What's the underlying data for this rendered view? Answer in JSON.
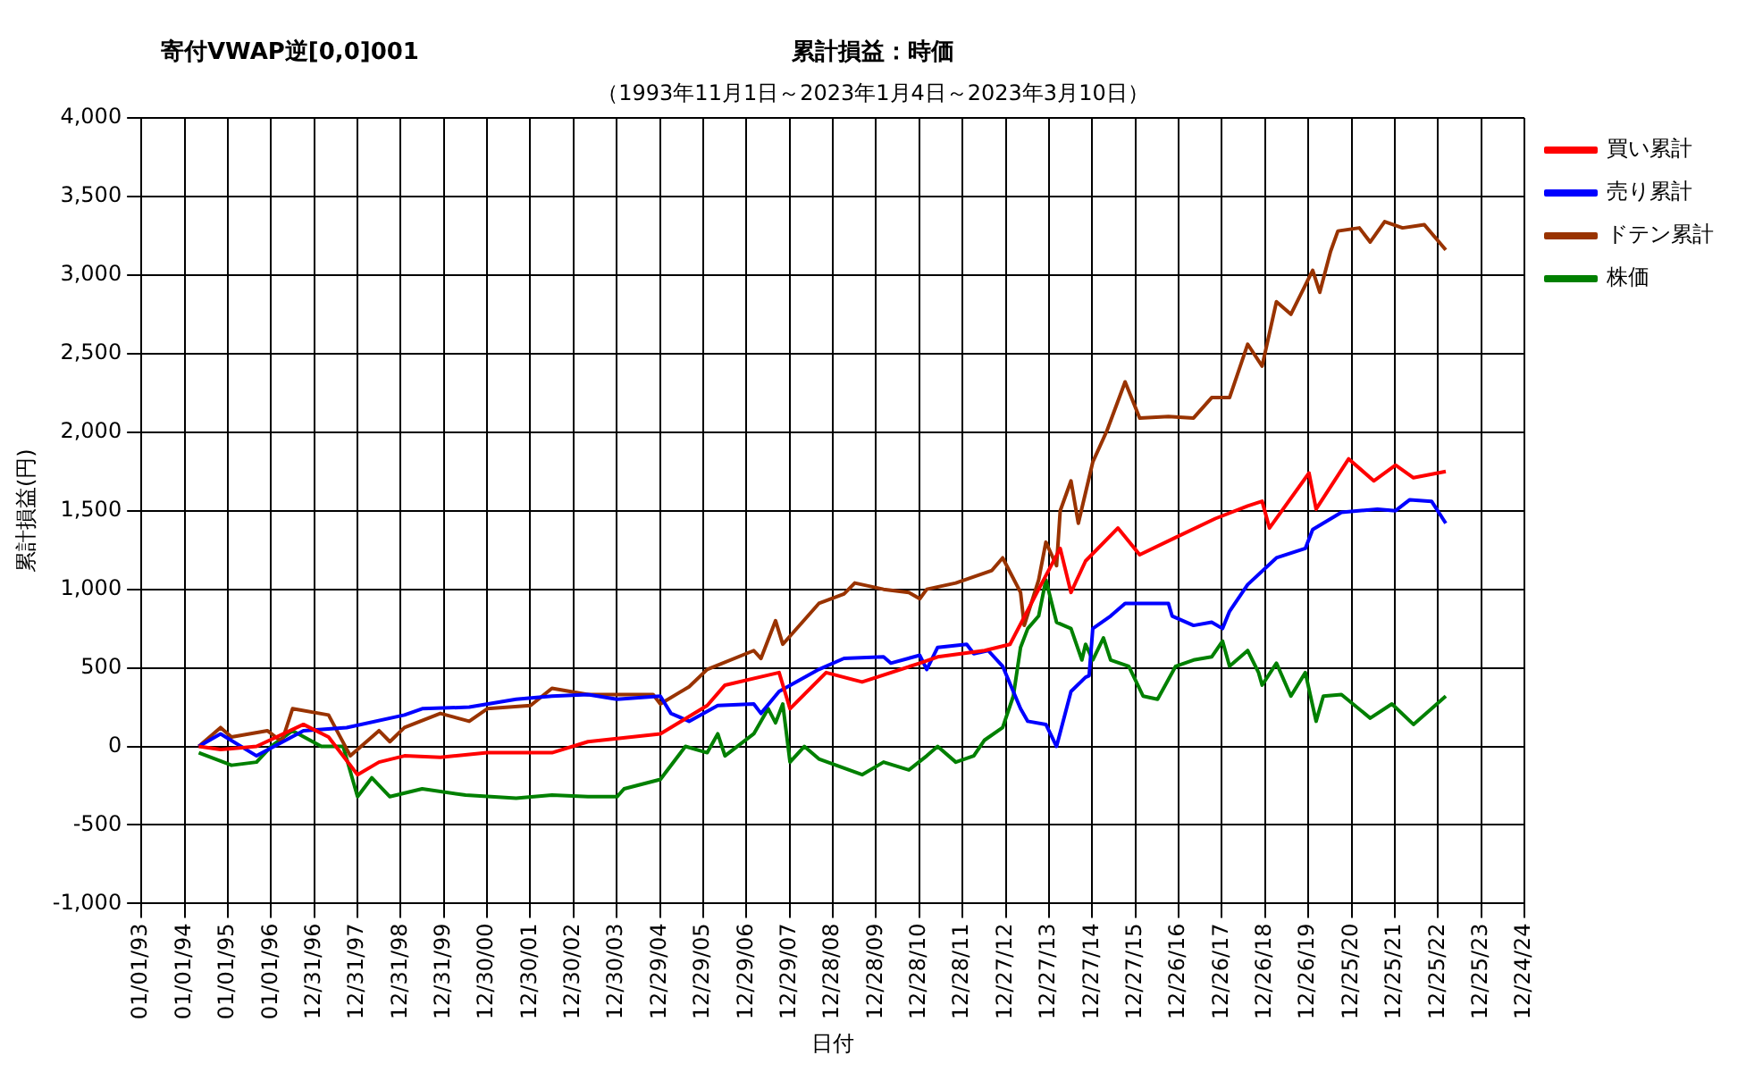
{
  "chart_data": {
    "type": "line",
    "title": "累計損益：時価",
    "subtitle": "（1993年11月1日～2023年1月4日～2023年3月10日）",
    "annotations": [
      "寄付VWAP逆[0,0]001"
    ],
    "xlabel": "日付",
    "ylabel": "累計損益(円)",
    "xlim": [
      "1993-01-01",
      "2024-12-24"
    ],
    "xticks": [
      {
        "value": "1993-01-01",
        "label": "01/01/93"
      },
      {
        "value": "1994-01-01",
        "label": "01/01/94"
      },
      {
        "value": "1995-01-01",
        "label": "01/01/95"
      },
      {
        "value": "1996-01-01",
        "label": "01/01/96"
      },
      {
        "value": "1996-12-31",
        "label": "12/31/96"
      },
      {
        "value": "1997-12-31",
        "label": "12/31/97"
      },
      {
        "value": "1998-12-31",
        "label": "12/31/98"
      },
      {
        "value": "1999-12-31",
        "label": "12/31/99"
      },
      {
        "value": "2000-12-30",
        "label": "12/30/00"
      },
      {
        "value": "2001-12-30",
        "label": "12/30/01"
      },
      {
        "value": "2002-12-30",
        "label": "12/30/02"
      },
      {
        "value": "2003-12-30",
        "label": "12/30/03"
      },
      {
        "value": "2004-12-29",
        "label": "12/29/04"
      },
      {
        "value": "2005-12-29",
        "label": "12/29/05"
      },
      {
        "value": "2006-12-29",
        "label": "12/29/06"
      },
      {
        "value": "2007-12-29",
        "label": "12/29/07"
      },
      {
        "value": "2008-12-28",
        "label": "12/28/08"
      },
      {
        "value": "2009-12-28",
        "label": "12/28/09"
      },
      {
        "value": "2010-12-28",
        "label": "12/28/10"
      },
      {
        "value": "2011-12-28",
        "label": "12/28/11"
      },
      {
        "value": "2012-12-27",
        "label": "12/27/12"
      },
      {
        "value": "2013-12-27",
        "label": "12/27/13"
      },
      {
        "value": "2014-12-27",
        "label": "12/27/14"
      },
      {
        "value": "2015-12-27",
        "label": "12/27/15"
      },
      {
        "value": "2016-12-26",
        "label": "12/26/16"
      },
      {
        "value": "2017-12-26",
        "label": "12/26/17"
      },
      {
        "value": "2018-12-26",
        "label": "12/26/18"
      },
      {
        "value": "2019-12-26",
        "label": "12/26/19"
      },
      {
        "value": "2020-12-25",
        "label": "12/25/20"
      },
      {
        "value": "2021-12-25",
        "label": "12/25/21"
      },
      {
        "value": "2022-12-25",
        "label": "12/25/22"
      },
      {
        "value": "2023-12-25",
        "label": "12/25/23"
      },
      {
        "value": "2024-12-24",
        "label": "12/24/24"
      }
    ],
    "ylim": [
      -1000,
      4000
    ],
    "yticks": [
      {
        "value": -1000,
        "label": "-1,000"
      },
      {
        "value": -500,
        "label": "-500"
      },
      0,
      500,
      {
        "value": 1000,
        "label": "1,000"
      },
      {
        "value": 1500,
        "label": "1,500"
      },
      {
        "value": 2000,
        "label": "2,000"
      },
      {
        "value": 2500,
        "label": "2,500"
      },
      {
        "value": 3000,
        "label": "3,000"
      },
      {
        "value": 3500,
        "label": "3,500"
      },
      {
        "value": 4000,
        "label": "4,000"
      }
    ],
    "grid": true,
    "legend": "right",
    "marker": "none",
    "line_style": "solid",
    "series": [
      {
        "name": "買い累計",
        "color": "#ff0000",
        "x": [
          "1994-05",
          "1994-11",
          "1995-09",
          "1996-10",
          "1997-05",
          "1998-01",
          "1998-07",
          "1999-02",
          "1999-12",
          "2001-01",
          "2002-07",
          "2003-05",
          "2005-01",
          "2006-02",
          "2006-07",
          "2007-10",
          "2008-01",
          "2008-11",
          "2009-09",
          "2011-01",
          "2011-06",
          "2012-07",
          "2013-02",
          "2013-10",
          "2014-04",
          "2014-07",
          "2014-11",
          "2015-08",
          "2016-02",
          "2016-12",
          "2017-11",
          "2018-08",
          "2018-12",
          "2019-02",
          "2020-01",
          "2020-03",
          "2020-12",
          "2021-07",
          "2022-01",
          "2022-06",
          "2023-03"
        ],
        "values": [
          0,
          -20,
          0,
          140,
          60,
          -180,
          -100,
          -60,
          -70,
          -40,
          -40,
          30,
          80,
          260,
          390,
          470,
          240,
          470,
          410,
          530,
          570,
          610,
          650,
          1000,
          1260,
          980,
          1180,
          1390,
          1220,
          1330,
          1450,
          1530,
          1560,
          1390,
          1740,
          1510,
          1830,
          1690,
          1790,
          1710,
          1750
        ]
      },
      {
        "name": "売り累計",
        "color": "#0000ff",
        "x": [
          "1994-05",
          "1994-11",
          "1995-09",
          "1996-10",
          "1997-10",
          "1999-02",
          "1999-07",
          "2000-08",
          "2001-09",
          "2002-07",
          "2003-05",
          "2004-01",
          "2005-01",
          "2005-04",
          "2005-09",
          "2006-05",
          "2007-03",
          "2007-05",
          "2007-10",
          "2008-09",
          "2009-04",
          "2010-03",
          "2010-05",
          "2011-01",
          "2011-03",
          "2011-06",
          "2012-02",
          "2012-04",
          "2012-08",
          "2012-12",
          "2013-05",
          "2013-07",
          "2013-12",
          "2014-03",
          "2014-07",
          "2014-11",
          "2014-12",
          "2015-01",
          "2015-06",
          "2015-10",
          "2016-10",
          "2016-11",
          "2017-05",
          "2017-10",
          "2018-01",
          "2018-03",
          "2018-08",
          "2019-04",
          "2019-12",
          "2020-02",
          "2020-10",
          "2021-08",
          "2022-01",
          "2022-05",
          "2022-11",
          "2023-03"
        ],
        "values": [
          0,
          80,
          -60,
          100,
          120,
          200,
          240,
          250,
          300,
          320,
          330,
          300,
          320,
          210,
          160,
          260,
          270,
          210,
          350,
          490,
          560,
          570,
          530,
          580,
          490,
          630,
          650,
          590,
          610,
          510,
          240,
          160,
          140,
          0,
          350,
          440,
          450,
          750,
          830,
          910,
          910,
          830,
          770,
          790,
          750,
          860,
          1030,
          1200,
          1260,
          1380,
          1490,
          1510,
          1500,
          1570,
          1560,
          1420
        ]
      },
      {
        "name": "ドテン累計",
        "color": "#993300",
        "x": [
          "1994-05",
          "1994-11",
          "1995-02",
          "1995-12",
          "1996-04",
          "1996-07",
          "1997-05",
          "1997-11",
          "1998-07",
          "1998-10",
          "1999-02",
          "1999-12",
          "2000-08",
          "2001-01",
          "2002-01",
          "2002-07",
          "2003-05",
          "2004-11",
          "2005-01",
          "2005-09",
          "2006-02",
          "2007-03",
          "2007-05",
          "2007-09",
          "2007-11",
          "2008-09",
          "2009-04",
          "2009-07",
          "2010-03",
          "2010-10",
          "2011-01",
          "2011-03",
          "2011-11",
          "2012-09",
          "2012-12",
          "2013-05",
          "2013-06",
          "2013-10",
          "2013-12",
          "2014-03",
          "2014-04",
          "2014-07",
          "2014-09",
          "2015-01",
          "2015-05",
          "2015-10",
          "2016-02",
          "2016-10",
          "2017-05",
          "2017-10",
          "2018-03",
          "2018-08",
          "2018-12",
          "2019-04",
          "2019-08",
          "2020-02",
          "2020-04",
          "2020-07",
          "2020-09",
          "2021-03",
          "2021-06",
          "2021-10",
          "2022-03",
          "2022-09",
          "2023-03"
        ],
        "values": [
          0,
          120,
          60,
          100,
          30,
          240,
          200,
          -60,
          100,
          30,
          120,
          210,
          160,
          240,
          260,
          370,
          330,
          330,
          270,
          380,
          490,
          610,
          560,
          800,
          650,
          910,
          970,
          1040,
          1000,
          980,
          940,
          1000,
          1040,
          1120,
          1200,
          980,
          770,
          1060,
          1300,
          1150,
          1500,
          1690,
          1420,
          1810,
          2010,
          2320,
          2090,
          2100,
          2090,
          2220,
          2220,
          2560,
          2420,
          2830,
          2750,
          3030,
          2890,
          3150,
          3280,
          3300,
          3210,
          3340,
          3300,
          3320,
          3160
        ]
      },
      {
        "name": "株価",
        "color": "#008000",
        "x": [
          "1994-05",
          "1995-02",
          "1995-09",
          "1996-01",
          "1996-07",
          "1997-03",
          "1997-09",
          "1998-01",
          "1998-05",
          "1998-10",
          "1999-07",
          "2000-07",
          "2001-09",
          "2002-07",
          "2003-05",
          "2004-01",
          "2004-03",
          "2005-01",
          "2005-08",
          "2006-02",
          "2006-05",
          "2006-07",
          "2007-03",
          "2007-07",
          "2007-09",
          "2007-11",
          "2008-01",
          "2008-05",
          "2008-09",
          "2009-09",
          "2010-03",
          "2010-10",
          "2011-03",
          "2011-06",
          "2011-11",
          "2012-04",
          "2012-07",
          "2012-12",
          "2013-03",
          "2013-05",
          "2013-07",
          "2013-10",
          "2013-12",
          "2014-03",
          "2014-07",
          "2014-10",
          "2014-11",
          "2015-01",
          "2015-04",
          "2015-06",
          "2015-11",
          "2016-03",
          "2016-07",
          "2016-12",
          "2017-05",
          "2017-10",
          "2018-01",
          "2018-03",
          "2018-08",
          "2018-11",
          "2018-12",
          "2019-04",
          "2019-08",
          "2019-12",
          "2020-03",
          "2020-05",
          "2020-10",
          "2021-06",
          "2021-12",
          "2022-06",
          "2022-11",
          "2023-03"
        ],
        "values": [
          -40,
          -120,
          -100,
          0,
          100,
          0,
          0,
          -320,
          -200,
          -320,
          -270,
          -310,
          -330,
          -310,
          -320,
          -320,
          -270,
          -210,
          0,
          -40,
          80,
          -60,
          80,
          240,
          150,
          270,
          -100,
          0,
          -80,
          -180,
          -100,
          -150,
          -60,
          0,
          -100,
          -60,
          40,
          120,
          320,
          630,
          750,
          830,
          1060,
          790,
          750,
          550,
          650,
          550,
          690,
          550,
          510,
          320,
          300,
          510,
          550,
          570,
          670,
          510,
          610,
          470,
          390,
          530,
          320,
          470,
          160,
          320,
          330,
          180,
          270,
          140,
          240,
          320
        ]
      }
    ]
  }
}
